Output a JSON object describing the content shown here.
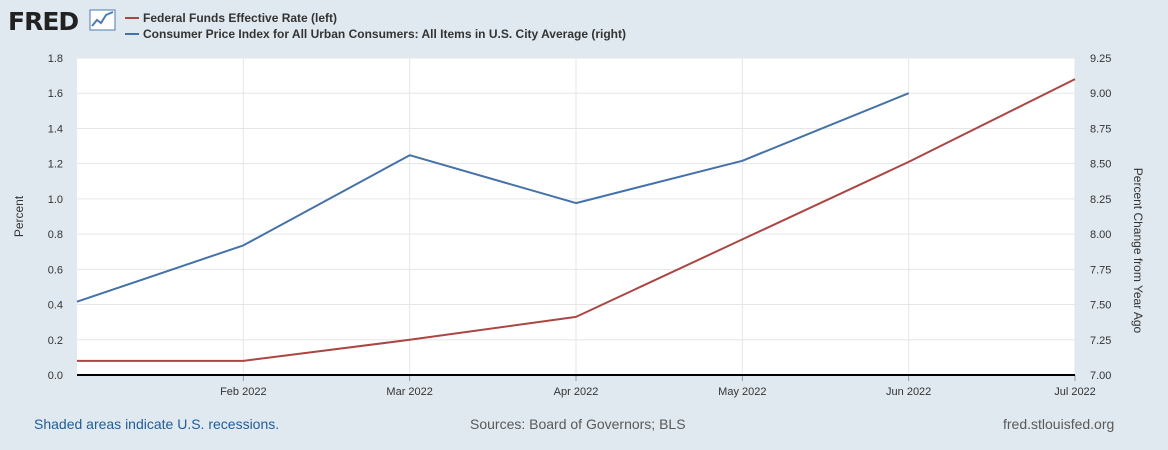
{
  "brand": {
    "logo_text": "FRED"
  },
  "colors": {
    "background": "#e1e9f0",
    "plot_background": "#ffffff",
    "series_fedfunds": "#aa4643",
    "series_cpi": "#4572a7",
    "gridline": "#e6e6e6",
    "link": "#1f5c99"
  },
  "chart_data": {
    "type": "line",
    "x": [
      "2022-01",
      "2022-02",
      "2022-03",
      "2022-04",
      "2022-05",
      "2022-06",
      "2022-07"
    ],
    "x_tick_labels": [
      "Feb 2022",
      "Mar 2022",
      "Apr 2022",
      "May 2022",
      "Jun 2022",
      "Jul 2022"
    ],
    "series": [
      {
        "name": "Federal Funds Effective Rate (left)",
        "axis": "left",
        "color": "#aa4643",
        "values": [
          0.08,
          0.08,
          0.2,
          0.33,
          0.77,
          1.21,
          1.68
        ]
      },
      {
        "name": "Consumer Price Index for All Urban Consumers: All Items in U.S. City Average (right)",
        "axis": "right",
        "color": "#4572a7",
        "values": [
          7.52,
          7.92,
          8.56,
          8.22,
          8.52,
          9.0,
          null
        ]
      }
    ],
    "ylabel": "Percent",
    "ylim": [
      0,
      1.8
    ],
    "yticks": [
      "0.0",
      "0.2",
      "0.4",
      "0.6",
      "0.8",
      "1.0",
      "1.2",
      "1.4",
      "1.6",
      "1.8"
    ],
    "y2label": "Percent Change from Year Ago",
    "y2lim": [
      7.0,
      9.25
    ],
    "y2ticks": [
      "7.00",
      "7.25",
      "7.50",
      "7.75",
      "8.00",
      "8.25",
      "8.50",
      "8.75",
      "9.00",
      "9.25"
    ],
    "grid": true,
    "legend_position": "top-left"
  },
  "footer": {
    "recessions_note": "Shaded areas indicate U.S. recessions.",
    "sources": "Sources: Board of Governors; BLS",
    "site": "fred.stlouisfed.org"
  }
}
